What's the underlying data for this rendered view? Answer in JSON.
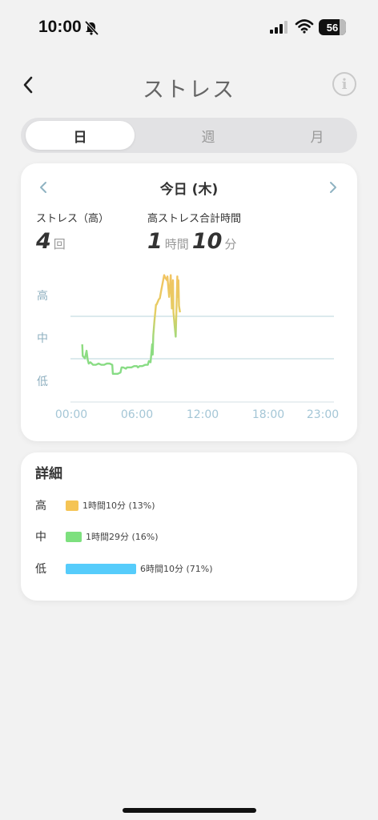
{
  "status_bar": {
    "time": "10:00",
    "battery": "56",
    "battery_level": 0.56,
    "icons": [
      "bell-mute-icon",
      "signal-icon",
      "wifi-icon",
      "battery-icon"
    ]
  },
  "nav": {
    "title": "ストレス",
    "back_icon": "chevron-left-icon",
    "info_icon": "info-icon",
    "info_glyph": "i"
  },
  "tabs": [
    {
      "label": "日",
      "active": true
    },
    {
      "label": "週",
      "active": false
    },
    {
      "label": "月",
      "active": false
    }
  ],
  "chart_card": {
    "date": "今日 (木)",
    "prev_icon": "chevron-left-icon",
    "next_icon": "chevron-right-icon",
    "high_count_label": "ストレス（高）",
    "high_count": "4",
    "high_count_unit": "回",
    "high_time_label": "高ストレス合計時間",
    "high_hours": "1",
    "hours_unit": "時間",
    "high_minutes": "10",
    "minutes_unit": "分"
  },
  "chart_data": {
    "type": "line",
    "title": "",
    "xlabel": "",
    "ylabel": "",
    "y_levels": [
      "高",
      "中",
      "低"
    ],
    "x_ticks": [
      "00:00",
      "06:00",
      "12:00",
      "18:00",
      "23:00"
    ],
    "x_range_hours": [
      0,
      23
    ],
    "y_range": [
      0,
      100
    ],
    "grid_lines_at": [
      33,
      67
    ],
    "colors": {
      "low": "#7ddb8a",
      "high": "#f2c462",
      "grid": "#c8dde2",
      "axis": "#dde6ea"
    },
    "series": [
      {
        "x": [
          1.0,
          1.05,
          1.25,
          1.4,
          1.5,
          1.6,
          1.75,
          2.0,
          2.25,
          2.5,
          2.75,
          3.0,
          3.25,
          3.5,
          3.75,
          3.8,
          4.0,
          4.25,
          4.5,
          4.6,
          4.75,
          5.0,
          5.1,
          5.5,
          5.75,
          6.0,
          6.1,
          6.25,
          6.5,
          6.75,
          7.0,
          7.1,
          7.25,
          7.4,
          7.45,
          7.5,
          7.6,
          7.75,
          7.8,
          8.0,
          8.1,
          8.25,
          8.5,
          8.6,
          8.75,
          8.8,
          8.85,
          8.95,
          9.1,
          9.2,
          9.3,
          9.35,
          9.45,
          9.55,
          9.6,
          9.7,
          9.75,
          9.8,
          9.85,
          9.95
        ],
        "y": [
          45,
          36,
          34,
          40,
          33,
          30,
          31,
          29,
          29,
          30,
          29,
          29,
          30,
          30,
          29,
          22,
          22,
          22,
          23,
          27,
          27,
          26,
          27,
          27,
          28,
          28,
          27,
          28,
          28,
          29,
          29,
          32,
          31,
          45,
          37,
          52,
          63,
          76,
          76,
          80,
          81,
          88,
          99,
          97,
          95,
          98,
          92,
          82,
          99,
          73,
          95,
          70,
          60,
          51,
          67,
          98,
          82,
          95,
          75,
          70
        ]
      }
    ]
  },
  "detail": {
    "title": "詳細",
    "rows": [
      {
        "level": "高",
        "value": "1時間10分 (13%)",
        "color": "#f5c454",
        "fraction": 0.13
      },
      {
        "level": "中",
        "value": "1時間29分 (16%)",
        "color": "#7de07e",
        "fraction": 0.16
      },
      {
        "level": "低",
        "value": "6時間10分 (71%)",
        "color": "#56ccfb",
        "fraction": 0.71
      }
    ]
  }
}
